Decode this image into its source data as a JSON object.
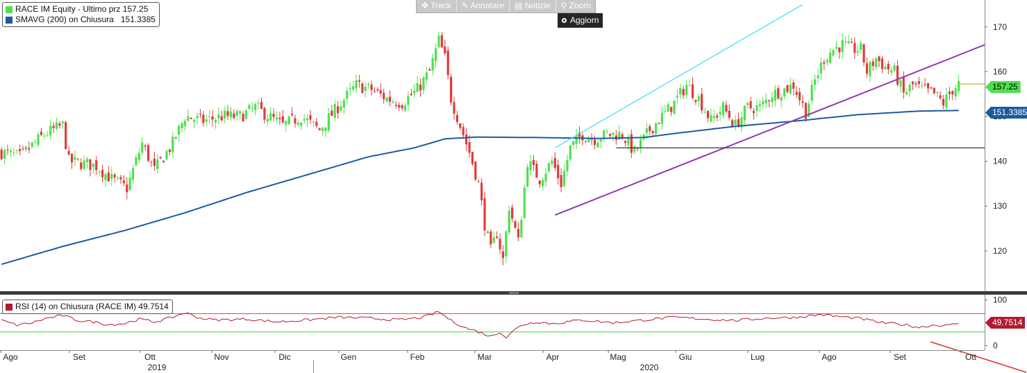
{
  "toolbar": {
    "track": "Track",
    "annotare": "Annotare",
    "notizie": "Notizie",
    "zoom": "Zoom",
    "aggiorn": "Aggiorn"
  },
  "legend_main": {
    "price_label": "RACE IM Equity - Ultimo prz",
    "price_value": "157.25",
    "sma_label": "SMAVG (200)  on Chiusura",
    "sma_value": "151.3385"
  },
  "legend_rsi": {
    "label": "RSI (14)  on Chiusura (RACE IM)",
    "value": "49.7514"
  },
  "tags": {
    "price": "157.25",
    "sma": "151.3385",
    "rsi": "49.7514"
  },
  "colors": {
    "up": "#4ee04e",
    "down": "#e03b3b",
    "sma": "#1c5aa0",
    "rsi": "#b01c2e",
    "channel_upper": "#33e0f0",
    "trend": "#8e3ab0",
    "support": "#333333"
  },
  "chart_data": {
    "type": "candlestick",
    "price_axis": {
      "ticks": [
        120,
        130,
        140,
        150,
        160,
        170
      ],
      "range": [
        111,
        176
      ]
    },
    "rsi_axis": {
      "ticks": [
        0,
        50,
        100
      ],
      "range": [
        -10,
        110
      ],
      "overbought": 70,
      "oversold": 30
    },
    "months": [
      "Ago",
      "Set",
      "Ott",
      "Nov",
      "Dic",
      "Gen",
      "Feb",
      "Mar",
      "Apr",
      "Mag",
      "Giu",
      "Lug",
      "Ago",
      "Set",
      "Ott"
    ],
    "years": [
      "2019",
      "2020"
    ],
    "price_anchors": [
      [
        0,
        142
      ],
      [
        6,
        141
      ],
      [
        14,
        146
      ],
      [
        20,
        148
      ],
      [
        22,
        140
      ],
      [
        31,
        139
      ],
      [
        36,
        136
      ],
      [
        41,
        134
      ],
      [
        46,
        144
      ],
      [
        50,
        138
      ],
      [
        56,
        144
      ],
      [
        60,
        150
      ],
      [
        66,
        149
      ],
      [
        72,
        150
      ],
      [
        78,
        150
      ],
      [
        83,
        152
      ],
      [
        92,
        148
      ],
      [
        98,
        150
      ],
      [
        104,
        147
      ],
      [
        111,
        153
      ],
      [
        116,
        157
      ],
      [
        121,
        156
      ],
      [
        126,
        154
      ],
      [
        131,
        153
      ],
      [
        136,
        156
      ],
      [
        140,
        160
      ],
      [
        143,
        167
      ],
      [
        145,
        163
      ],
      [
        147,
        154
      ],
      [
        150,
        148
      ],
      [
        153,
        142
      ],
      [
        156,
        135
      ],
      [
        158,
        126
      ],
      [
        160,
        120
      ],
      [
        162,
        124
      ],
      [
        164,
        118
      ],
      [
        166,
        130
      ],
      [
        169,
        122
      ],
      [
        172,
        140
      ],
      [
        176,
        136
      ],
      [
        180,
        140
      ],
      [
        183,
        135
      ],
      [
        186,
        143
      ],
      [
        190,
        146
      ],
      [
        194,
        145
      ],
      [
        198,
        146
      ],
      [
        203,
        146
      ],
      [
        207,
        142
      ],
      [
        212,
        147
      ],
      [
        216,
        150
      ],
      [
        220,
        153
      ],
      [
        224,
        157
      ],
      [
        228,
        154
      ],
      [
        232,
        149
      ],
      [
        236,
        152
      ],
      [
        240,
        148
      ],
      [
        244,
        152
      ],
      [
        248,
        152
      ],
      [
        252,
        155
      ],
      [
        256,
        156
      ],
      [
        259,
        157
      ],
      [
        263,
        151
      ],
      [
        266,
        158
      ],
      [
        269,
        163
      ],
      [
        272,
        165
      ],
      [
        275,
        166
      ],
      [
        278,
        165
      ],
      [
        281,
        165
      ],
      [
        283,
        160
      ],
      [
        286,
        163
      ],
      [
        289,
        161
      ],
      [
        292,
        160
      ],
      [
        295,
        155
      ],
      [
        298,
        157
      ],
      [
        301,
        156
      ],
      [
        305,
        155
      ],
      [
        308,
        153
      ],
      [
        311,
        156
      ],
      [
        313,
        157.25
      ]
    ],
    "sma_anchors": [
      [
        0,
        117
      ],
      [
        20,
        121
      ],
      [
        40,
        124.5
      ],
      [
        60,
        128.5
      ],
      [
        80,
        133
      ],
      [
        100,
        137
      ],
      [
        120,
        141
      ],
      [
        135,
        143
      ],
      [
        145,
        145
      ],
      [
        155,
        145.4
      ],
      [
        175,
        145.3
      ],
      [
        195,
        145.1
      ],
      [
        210,
        145.3
      ],
      [
        220,
        146.2
      ],
      [
        240,
        147.8
      ],
      [
        260,
        149
      ],
      [
        280,
        150.4
      ],
      [
        300,
        151.2
      ],
      [
        313,
        151.3385
      ]
    ],
    "rsi_anchors": [
      [
        0,
        55
      ],
      [
        5,
        45
      ],
      [
        10,
        50
      ],
      [
        15,
        60
      ],
      [
        20,
        66
      ],
      [
        25,
        55
      ],
      [
        30,
        52
      ],
      [
        35,
        46
      ],
      [
        40,
        48
      ],
      [
        45,
        58
      ],
      [
        50,
        52
      ],
      [
        55,
        60
      ],
      [
        60,
        72
      ],
      [
        65,
        60
      ],
      [
        70,
        56
      ],
      [
        80,
        58
      ],
      [
        90,
        52
      ],
      [
        100,
        56
      ],
      [
        110,
        62
      ],
      [
        120,
        60
      ],
      [
        130,
        56
      ],
      [
        138,
        62
      ],
      [
        143,
        74
      ],
      [
        147,
        55
      ],
      [
        152,
        38
      ],
      [
        156,
        30
      ],
      [
        160,
        20
      ],
      [
        163,
        30
      ],
      [
        165,
        18
      ],
      [
        167,
        30
      ],
      [
        170,
        45
      ],
      [
        175,
        52
      ],
      [
        180,
        48
      ],
      [
        190,
        56
      ],
      [
        200,
        50
      ],
      [
        210,
        56
      ],
      [
        220,
        62
      ],
      [
        230,
        58
      ],
      [
        240,
        55
      ],
      [
        250,
        60
      ],
      [
        260,
        62
      ],
      [
        268,
        68
      ],
      [
        273,
        64
      ],
      [
        280,
        60
      ],
      [
        288,
        50
      ],
      [
        295,
        46
      ],
      [
        300,
        40
      ],
      [
        305,
        45
      ],
      [
        310,
        44
      ],
      [
        313,
        49.7514
      ]
    ],
    "trend_lines": [
      {
        "name": "channel-upper",
        "from": [
          181,
          143
        ],
        "to": [
          262,
          175
        ]
      },
      {
        "name": "trendline",
        "from": [
          181,
          128
        ],
        "to": [
          322,
          166
        ]
      },
      {
        "name": "support",
        "from": [
          201,
          143
        ],
        "to": [
          322,
          143
        ]
      },
      {
        "name": "last-price",
        "from": [
          313,
          157.25
        ],
        "to": [
          322,
          157.25
        ]
      }
    ]
  }
}
